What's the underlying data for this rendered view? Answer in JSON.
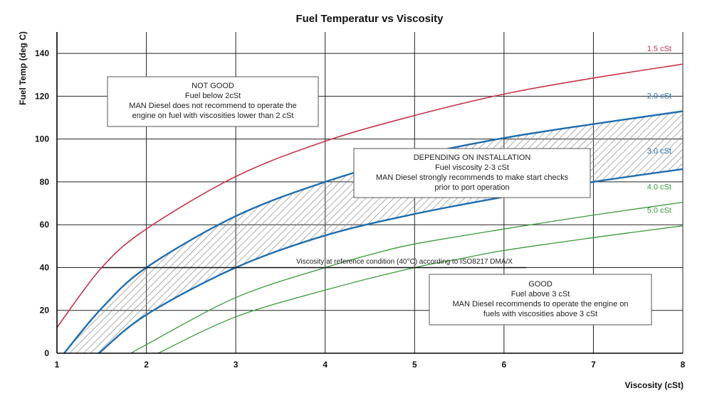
{
  "chart_data": {
    "type": "line",
    "title": "Fuel Temperatur vs Viscosity",
    "xlabel": "Viscosity (cSt)",
    "ylabel": "Fuel Temp (deg C)",
    "xlim": [
      1,
      8
    ],
    "ylim": [
      0,
      150
    ],
    "x_ticks": [
      "1",
      "2",
      "3",
      "4",
      "5",
      "6",
      "7",
      "8"
    ],
    "y_ticks": [
      "0",
      "20",
      "40",
      "60",
      "80",
      "100",
      "120",
      "140"
    ],
    "grid": true,
    "series": [
      {
        "name": "1.5 cSt",
        "color": "#c8334a",
        "width": 1.6,
        "points": [
          [
            1,
            12
          ],
          [
            1.5,
            40
          ],
          [
            2,
            58
          ],
          [
            3,
            82.5
          ],
          [
            4,
            99
          ],
          [
            5,
            111
          ],
          [
            6,
            121
          ],
          [
            7,
            128.5
          ],
          [
            8,
            135
          ]
        ]
      },
      {
        "name": "2.0 cSt",
        "color": "#1f6db0",
        "width": 2.4,
        "points": [
          [
            1.08,
            0
          ],
          [
            1.5,
            21
          ],
          [
            2,
            40
          ],
          [
            3,
            64
          ],
          [
            4,
            80
          ],
          [
            5,
            92
          ],
          [
            6,
            100.5
          ],
          [
            7,
            107
          ],
          [
            8,
            113
          ]
        ]
      },
      {
        "name": "3.0 cSt",
        "color": "#1f6db0",
        "width": 2.4,
        "points": [
          [
            1.47,
            0
          ],
          [
            2,
            18
          ],
          [
            3,
            40
          ],
          [
            4,
            55
          ],
          [
            5,
            65
          ],
          [
            6,
            73
          ],
          [
            7,
            80
          ],
          [
            8,
            86
          ]
        ]
      },
      {
        "name": "4.0 cSt",
        "color": "#3a9a3a",
        "width": 1.3,
        "points": [
          [
            1.83,
            0
          ],
          [
            2,
            4
          ],
          [
            3,
            26
          ],
          [
            4,
            40
          ],
          [
            4.5,
            46
          ],
          [
            5,
            51
          ],
          [
            6,
            58
          ],
          [
            7,
            64.5
          ],
          [
            8,
            70.5
          ]
        ]
      },
      {
        "name": "5.0 cSt",
        "color": "#3a9a3a",
        "width": 1.3,
        "points": [
          [
            2.13,
            0
          ],
          [
            3,
            17
          ],
          [
            4,
            29.5
          ],
          [
            5,
            40
          ],
          [
            5.5,
            44
          ],
          [
            6,
            48
          ],
          [
            7,
            54
          ],
          [
            8,
            59.5
          ]
        ]
      }
    ],
    "hatched_region": {
      "upper": "2.0 cSt",
      "lower": "3.0 cSt"
    },
    "reference_line": {
      "label": "Viscosity at reference condition (40°C) according to ISO8217 DMA/X",
      "y": 40,
      "x_start": 1.5,
      "x_end": 6.25
    },
    "annotations": [
      {
        "id": "not-good",
        "lines": [
          "NOT GOOD",
          "Fuel below 2cSt",
          "MAN Diesel does not recommend to operate the",
          "engine on fuel with viscosities lower than 2 cSt"
        ]
      },
      {
        "id": "depending",
        "lines": [
          "DEPENDING ON INSTALLATION",
          "Fuel viscosity 2-3 cSt",
          "MAN Diesel strongly recommends to make start checks",
          "prior to port operation"
        ]
      },
      {
        "id": "good",
        "lines": [
          "GOOD",
          "Fuel above 3 cSt",
          "MAN Diesel recommends to operate the engine on",
          "fuels with viscosities above 3 cSt"
        ]
      }
    ]
  }
}
